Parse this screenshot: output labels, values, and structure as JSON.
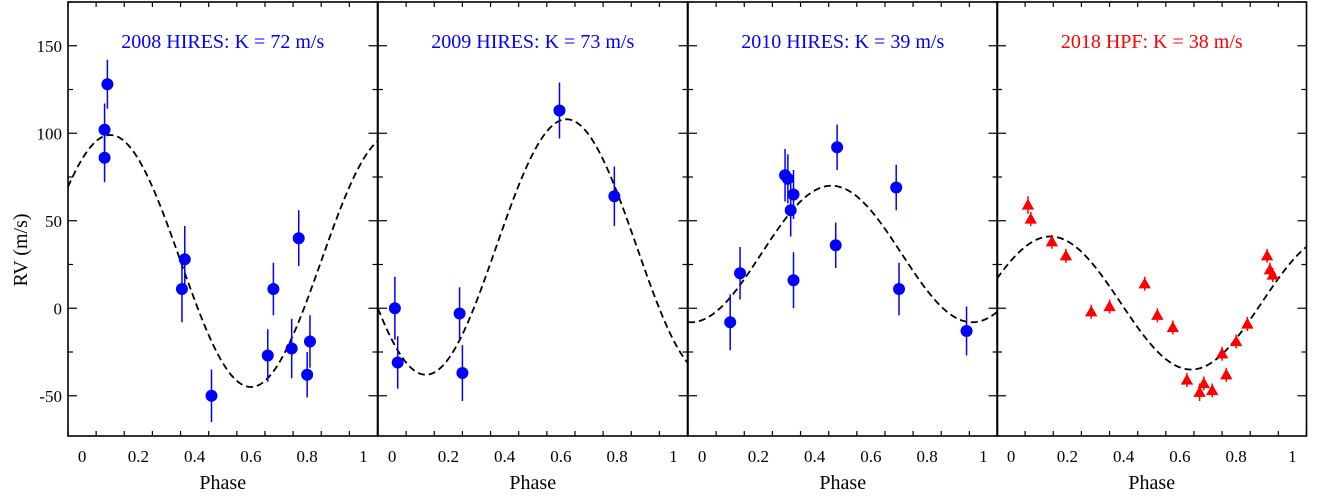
{
  "figure": {
    "ylabel": "RV (m/s)",
    "xlabel": "Phase"
  },
  "chart_data": [
    {
      "type": "scatter",
      "title": "2008 HIRES: K = 72 m/s",
      "title_color": "#0000ff",
      "marker": "circle",
      "marker_color": "#0000ff",
      "xlabel": "Phase",
      "ylabel": "RV (m/s)",
      "xlim": [
        -0.05,
        1.05
      ],
      "ylim": [
        -73,
        175
      ],
      "xticks": [
        0,
        0.2,
        0.4,
        0.6,
        0.8,
        1
      ],
      "xtick_labels": [
        "0",
        "0.2",
        "0.4",
        "0.6",
        "0.8",
        "1"
      ],
      "yticks": [
        -50,
        0,
        50,
        100,
        150
      ],
      "ytick_labels": [
        "-50",
        "0",
        "50",
        "100",
        "150"
      ],
      "model": {
        "style": "dashed",
        "color": "#000000",
        "K": 72,
        "offset": 27,
        "peak_phase": 0.1
      },
      "points": [
        {
          "x": 0.08,
          "y": 102,
          "err": 15
        },
        {
          "x": 0.08,
          "y": 86,
          "err": 14
        },
        {
          "x": 0.09,
          "y": 128,
          "err": 14
        },
        {
          "x": 0.355,
          "y": 11,
          "err": 19
        },
        {
          "x": 0.365,
          "y": 28,
          "err": 19
        },
        {
          "x": 0.46,
          "y": -50,
          "err": 15
        },
        {
          "x": 0.66,
          "y": -27,
          "err": 15
        },
        {
          "x": 0.68,
          "y": 11,
          "err": 15
        },
        {
          "x": 0.745,
          "y": -23,
          "err": 17
        },
        {
          "x": 0.77,
          "y": 40,
          "err": 16
        },
        {
          "x": 0.8,
          "y": -38,
          "err": 13
        },
        {
          "x": 0.81,
          "y": -19,
          "err": 15
        }
      ]
    },
    {
      "type": "scatter",
      "title": "2009 HIRES: K = 73 m/s",
      "title_color": "#0000ff",
      "marker": "circle",
      "marker_color": "#0000ff",
      "xlabel": "Phase",
      "xlim": [
        -0.05,
        1.05
      ],
      "ylim": [
        -73,
        175
      ],
      "xticks": [
        0,
        0.2,
        0.4,
        0.6,
        0.8,
        1
      ],
      "xtick_labels": [
        "0",
        "0.2",
        "0.4",
        "0.6",
        "0.8",
        "1"
      ],
      "model": {
        "style": "dashed",
        "color": "#000000",
        "K": 73,
        "offset": 35,
        "peak_phase": 0.62
      },
      "points": [
        {
          "x": 0.01,
          "y": 0,
          "err": 18
        },
        {
          "x": 0.02,
          "y": -31,
          "err": 15
        },
        {
          "x": 0.24,
          "y": -3,
          "err": 15
        },
        {
          "x": 0.25,
          "y": -37,
          "err": 16
        },
        {
          "x": 0.595,
          "y": 113,
          "err": 16
        },
        {
          "x": 0.79,
          "y": 64,
          "err": 17
        }
      ]
    },
    {
      "type": "scatter",
      "title": "2010 HIRES: K = 39 m/s",
      "title_color": "#0000ff",
      "marker": "circle",
      "marker_color": "#0000ff",
      "xlabel": "Phase",
      "xlim": [
        -0.05,
        1.05
      ],
      "ylim": [
        -73,
        175
      ],
      "xticks": [
        0,
        0.2,
        0.4,
        0.6,
        0.8,
        1
      ],
      "xtick_labels": [
        "0",
        "0.2",
        "0.4",
        "0.6",
        "0.8",
        "1"
      ],
      "model": {
        "style": "dashed",
        "color": "#000000",
        "K": 39,
        "offset": 31,
        "peak_phase": 0.46
      },
      "points": [
        {
          "x": 0.1,
          "y": -8,
          "err": 16
        },
        {
          "x": 0.135,
          "y": 20,
          "err": 15
        },
        {
          "x": 0.295,
          "y": 76,
          "err": 15
        },
        {
          "x": 0.305,
          "y": 74,
          "err": 14
        },
        {
          "x": 0.315,
          "y": 56,
          "err": 15
        },
        {
          "x": 0.325,
          "y": 65,
          "err": 14
        },
        {
          "x": 0.325,
          "y": 16,
          "err": 16
        },
        {
          "x": 0.475,
          "y": 36,
          "err": 13
        },
        {
          "x": 0.48,
          "y": 92,
          "err": 13
        },
        {
          "x": 0.69,
          "y": 69,
          "err": 13
        },
        {
          "x": 0.7,
          "y": 11,
          "err": 15
        },
        {
          "x": 0.94,
          "y": -13,
          "err": 14
        }
      ]
    },
    {
      "type": "scatter",
      "title": "2018 HPF: K = 38 m/s",
      "title_color": "#ff0000",
      "marker": "triangle",
      "marker_color": "#ff0000",
      "xlabel": "Phase",
      "xlim": [
        -0.05,
        1.05
      ],
      "ylim": [
        -73,
        175
      ],
      "xticks": [
        0,
        0.2,
        0.4,
        0.6,
        0.8,
        1
      ],
      "xtick_labels": [
        "0",
        "0.2",
        "0.4",
        "0.6",
        "0.8",
        "1"
      ],
      "model": {
        "style": "dashed",
        "color": "#000000",
        "K": 38,
        "offset": 3,
        "peak_phase": 0.14
      },
      "points": [
        {
          "x": 0.06,
          "y": 59,
          "err": 5
        },
        {
          "x": 0.07,
          "y": 51,
          "err": 4
        },
        {
          "x": 0.145,
          "y": 38,
          "err": 4
        },
        {
          "x": 0.195,
          "y": 30,
          "err": 4
        },
        {
          "x": 0.285,
          "y": -2,
          "err": 4
        },
        {
          "x": 0.35,
          "y": 1,
          "err": 4
        },
        {
          "x": 0.475,
          "y": 14,
          "err": 4
        },
        {
          "x": 0.52,
          "y": -4,
          "err": 4
        },
        {
          "x": 0.575,
          "y": -11,
          "err": 4
        },
        {
          "x": 0.625,
          "y": -41,
          "err": 4
        },
        {
          "x": 0.67,
          "y": -48,
          "err": 5
        },
        {
          "x": 0.685,
          "y": -43,
          "err": 4
        },
        {
          "x": 0.715,
          "y": -47,
          "err": 4
        },
        {
          "x": 0.75,
          "y": -26,
          "err": 4
        },
        {
          "x": 0.765,
          "y": -38,
          "err": 4
        },
        {
          "x": 0.8,
          "y": -19,
          "err": 4
        },
        {
          "x": 0.84,
          "y": -9,
          "err": 4
        },
        {
          "x": 0.91,
          "y": 30,
          "err": 4
        },
        {
          "x": 0.92,
          "y": 22,
          "err": 4
        },
        {
          "x": 0.93,
          "y": 19,
          "err": 4
        }
      ]
    }
  ]
}
